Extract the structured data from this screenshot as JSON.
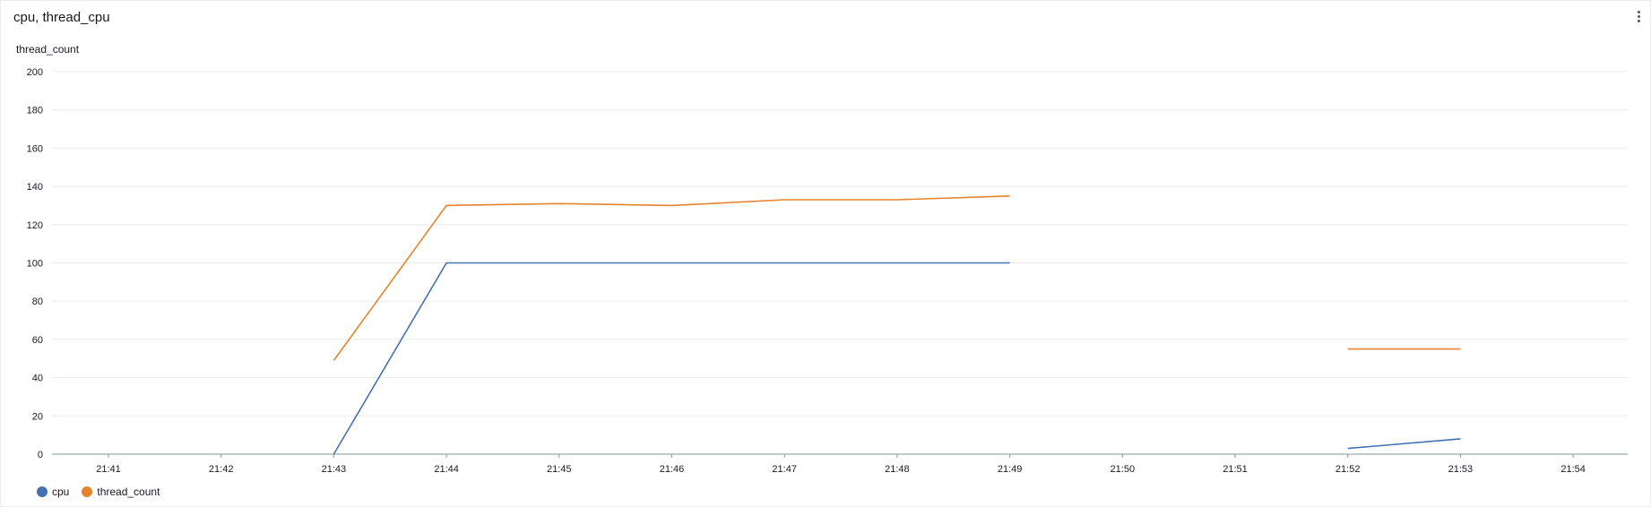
{
  "panel": {
    "title": "cpu, thread_cpu",
    "menu_icon": "kebab-vertical-icon"
  },
  "chart_data": {
    "type": "line",
    "title": "cpu, thread_cpu",
    "ylabel": "thread_count",
    "xlabel": "",
    "ylim": [
      0,
      200
    ],
    "yticks": [
      "0",
      "20",
      "40",
      "60",
      "80",
      "100",
      "120",
      "140",
      "160",
      "180",
      "200"
    ],
    "categories": [
      "21:41",
      "21:42",
      "21:43",
      "21:44",
      "21:45",
      "21:46",
      "21:47",
      "21:48",
      "21:49",
      "21:50",
      "21:51",
      "21:52",
      "21:53",
      "21:54"
    ],
    "grid": true,
    "legend_position": "bottom-left",
    "series": [
      {
        "name": "cpu",
        "color": "#4472b0",
        "values": [
          null,
          null,
          0,
          100,
          100,
          100,
          100,
          100,
          100,
          null,
          null,
          3,
          8,
          null
        ]
      },
      {
        "name": "thread_count",
        "color": "#e6832d",
        "values": [
          null,
          null,
          49,
          130,
          131,
          130,
          133,
          133,
          135,
          null,
          null,
          55,
          55,
          null
        ]
      }
    ]
  }
}
